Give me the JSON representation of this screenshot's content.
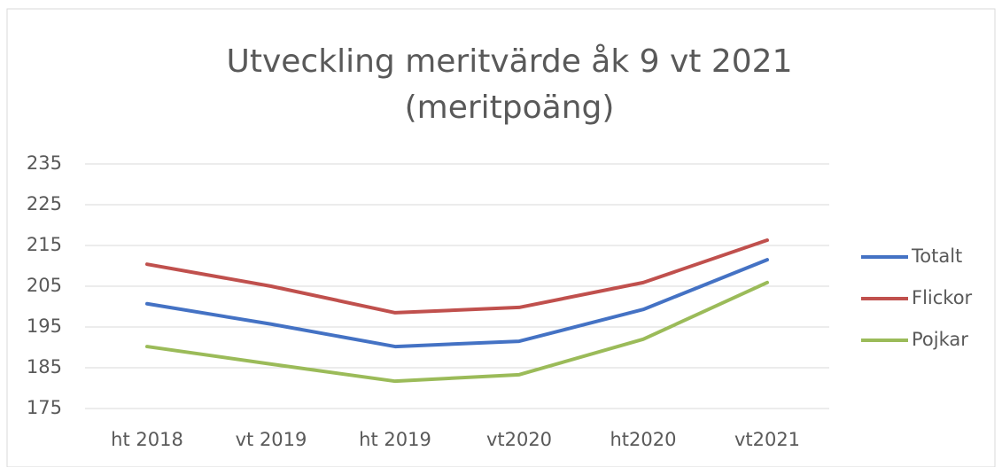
{
  "chart_data": {
    "type": "line",
    "title": "Utveckling meritvärde åk 9 vt 2021 (meritpoäng)",
    "categories": [
      "ht 2018",
      "vt 2019",
      "ht 2019",
      "vt2020",
      "ht2020",
      "vt2021"
    ],
    "series": [
      {
        "name": "Totalt",
        "color": "#4472c4",
        "values": [
          200.7,
          195.7,
          190.2,
          191.5,
          199.3,
          211.5
        ]
      },
      {
        "name": "Flickor",
        "color": "#c0504d",
        "values": [
          210.4,
          205,
          198.5,
          199.8,
          205.9,
          216.3
        ]
      },
      {
        "name": "Pojkar",
        "color": "#9bbb59",
        "values": [
          190.2,
          185.9,
          181.7,
          183.3,
          192,
          205.9
        ]
      }
    ],
    "ylim": [
      175,
      235
    ],
    "yticks": [
      175,
      185,
      195,
      205,
      215,
      225,
      235
    ],
    "grid": true,
    "legend": "right"
  }
}
